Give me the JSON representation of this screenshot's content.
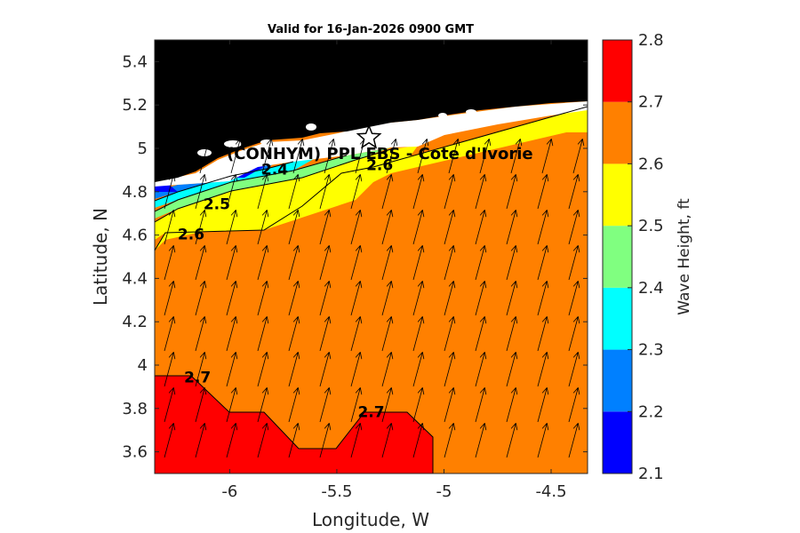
{
  "chart_data": {
    "type": "filled-contour",
    "title": "Valid for 16-Jan-2026 0900 GMT",
    "xlabel": "Longitude, W",
    "ylabel": "Latitude, N",
    "xlim": [
      -6.35,
      -4.33
    ],
    "ylim": [
      3.5,
      5.5
    ],
    "xticks": [
      -6,
      -5.5,
      -5,
      -4.5
    ],
    "yticks": [
      3.6,
      3.8,
      4,
      4.2,
      4.4,
      4.6,
      4.8,
      5,
      5.2,
      5.4
    ],
    "colorbar": {
      "label": "Wave Height, ft",
      "ticks": [
        2.1,
        2.2,
        2.3,
        2.4,
        2.5,
        2.6,
        2.7,
        2.8
      ],
      "levels": [
        {
          "from": 2.1,
          "to": 2.2,
          "color": "#0000ff"
        },
        {
          "from": 2.2,
          "to": 2.3,
          "color": "#0080ff"
        },
        {
          "from": 2.3,
          "to": 2.4,
          "color": "#00ffff"
        },
        {
          "from": 2.4,
          "to": 2.5,
          "color": "#80ff80"
        },
        {
          "from": 2.5,
          "to": 2.6,
          "color": "#ffff00"
        },
        {
          "from": 2.6,
          "to": 2.7,
          "color": "#ff8000"
        },
        {
          "from": 2.7,
          "to": 2.8,
          "color": "#ff0000"
        }
      ]
    },
    "contour_labels": [
      {
        "text": "2.4",
        "lon": -5.79,
        "lat": 4.88
      },
      {
        "text": "2.5",
        "lon": -6.06,
        "lat": 4.72
      },
      {
        "text": "2.6",
        "lon": -6.18,
        "lat": 4.58
      },
      {
        "text": "2.6",
        "lon": -5.3,
        "lat": 4.9
      },
      {
        "text": "2.7",
        "lon": -6.15,
        "lat": 3.92
      },
      {
        "text": "2.7",
        "lon": -5.34,
        "lat": 3.76
      }
    ],
    "site": {
      "name": "(CONHYM) PPL EBS - Cote d'Ivorie",
      "lon": -5.35,
      "lat": 5.05
    },
    "vector_field": {
      "description": "wave direction arrows pointing north-northeast",
      "direction_deg": 15
    }
  }
}
